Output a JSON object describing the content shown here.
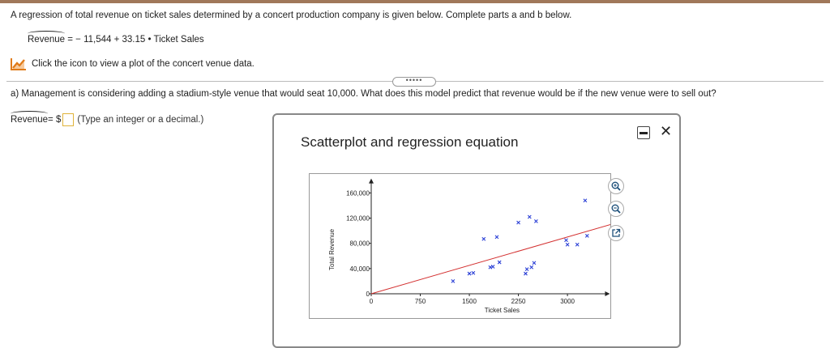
{
  "intro_text": "A regression of total revenue on ticket sales determined by a concert production company is given below. Complete parts a and b below.",
  "equation": {
    "lhs": "Revenue",
    "rhs": " = − 11,544 + 33.15 • Ticket Sales"
  },
  "click_text": "Click the icon to view a plot of the concert venue data.",
  "more_button": "•••••",
  "question_a": "a) Management is considering adding a stadium-style venue that would seat 10,000. What does this model predict that revenue would be if the new venue were to sell out?",
  "answer": {
    "lhs": "Revenue",
    "prefix": " = $",
    "value": "",
    "hint": "(Type an integer or a decimal.)"
  },
  "panel": {
    "title": "Scatterplot and regression equation",
    "close_label": "✕"
  },
  "icons": [
    "line-chart-icon",
    "minimize-icon",
    "close-icon",
    "zoom-in-icon",
    "zoom-out-icon",
    "external-link-icon"
  ],
  "colors": {
    "points": "#2a3fd6",
    "regression": "#d32f2f",
    "accent_border": "#e0b33a"
  },
  "chart_data": {
    "type": "scatter",
    "title": "",
    "xlabel": "Ticket Sales",
    "ylabel": "Total Revenue",
    "xlim": [
      0,
      3500
    ],
    "ylim": [
      0,
      170000
    ],
    "xticks": [
      0,
      750,
      1500,
      2250,
      3000
    ],
    "xtick_labels": [
      "0",
      "750",
      "1500",
      "2250",
      "3000"
    ],
    "yticks": [
      0,
      40000,
      80000,
      120000,
      160000
    ],
    "ytick_labels": [
      "0",
      "40,000",
      "80,000",
      "120,000",
      "160,000"
    ],
    "marker": "x",
    "points": [
      {
        "x": 1250,
        "y": 20000
      },
      {
        "x": 1500,
        "y": 32000
      },
      {
        "x": 1560,
        "y": 33000
      },
      {
        "x": 1720,
        "y": 87000
      },
      {
        "x": 1820,
        "y": 42000
      },
      {
        "x": 1860,
        "y": 43000
      },
      {
        "x": 1920,
        "y": 90000
      },
      {
        "x": 1960,
        "y": 50000
      },
      {
        "x": 2250,
        "y": 113000
      },
      {
        "x": 2360,
        "y": 32000
      },
      {
        "x": 2380,
        "y": 39000
      },
      {
        "x": 2420,
        "y": 122000
      },
      {
        "x": 2450,
        "y": 42000
      },
      {
        "x": 2490,
        "y": 49000
      },
      {
        "x": 2520,
        "y": 115000
      },
      {
        "x": 2980,
        "y": 85000
      },
      {
        "x": 3000,
        "y": 78000
      },
      {
        "x": 3150,
        "y": 78000
      },
      {
        "x": 3270,
        "y": 148000
      },
      {
        "x": 3300,
        "y": 92000
      }
    ],
    "regression": {
      "intercept": -11544,
      "slope": 33.15,
      "x_range": [
        0,
        3700
      ]
    }
  }
}
